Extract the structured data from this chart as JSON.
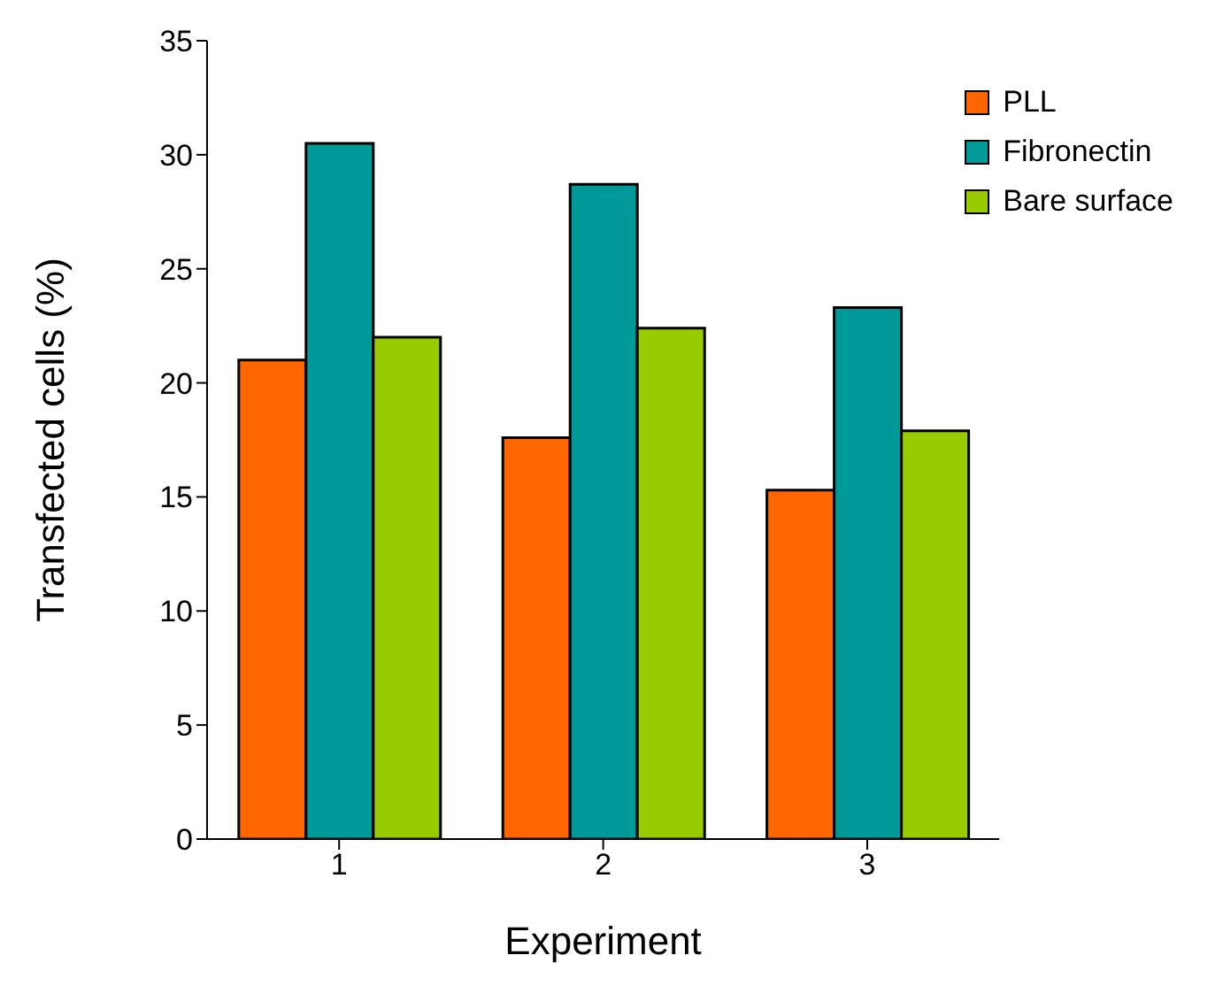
{
  "chart_data": {
    "type": "bar",
    "xlabel": "Experiment",
    "ylabel": "Transfected cells (%)",
    "categories": [
      "1",
      "2",
      "3"
    ],
    "series": [
      {
        "name": "PLL",
        "color": "#ff6600",
        "values": [
          21,
          17.6,
          15.3
        ]
      },
      {
        "name": "Fibronectin",
        "color": "#009999",
        "values": [
          30.5,
          28.7,
          23.3
        ]
      },
      {
        "name": "Bare surface",
        "color": "#99cc00",
        "values": [
          22,
          22.4,
          17.9
        ]
      }
    ],
    "ylim": [
      0,
      35
    ],
    "yticks": [
      0,
      5,
      10,
      15,
      20,
      25,
      30,
      35
    ],
    "grid": false,
    "legend": "top right"
  }
}
